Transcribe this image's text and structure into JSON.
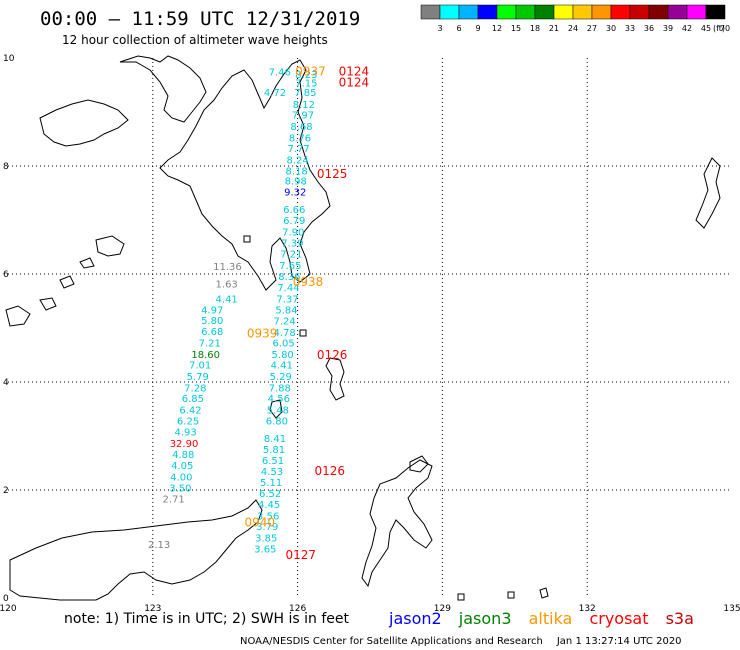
{
  "title": "00:00 – 11:59 UTC 12/31/2019",
  "subtitle": "12 hour collection of altimeter wave heights",
  "legend": {
    "unit": "(ft)",
    "ticks": [
      "3",
      "6",
      "9",
      "12",
      "15",
      "18",
      "21",
      "24",
      "27",
      "30",
      "33",
      "36",
      "39",
      "42",
      "45",
      "70"
    ],
    "colors": [
      "#808080",
      "#00ffff",
      "#00b4ff",
      "#0000ff",
      "#00ff00",
      "#00c800",
      "#008000",
      "#ffff00",
      "#ffc800",
      "#ff9600",
      "#ff0000",
      "#c80000",
      "#800000",
      "#960096",
      "#ff00ff",
      "#000000"
    ]
  },
  "axes": {
    "lon_labels": [
      "120",
      "123",
      "126",
      "129",
      "132",
      "135"
    ],
    "lat_labels": [
      "10",
      "8",
      "6",
      "4",
      "2",
      "0"
    ]
  },
  "annotations": {
    "note": "note:  1) Time is in UTC;  2) SWH is in feet",
    "satellites": [
      {
        "name": "jason2",
        "color": "#0000ff"
      },
      {
        "name": "jason3",
        "color": "#008000"
      },
      {
        "name": "altika",
        "color": "#ff9600"
      },
      {
        "name": "cryosat",
        "color": "#ff0000"
      },
      {
        "name": "s3a",
        "color": "#c80000"
      }
    ],
    "credit": "NOAA/NESDIS Center for Satellite Applications and Research",
    "timestamp": "Jan  1 13:27:14 UTC 2020"
  },
  "time_labels": [
    {
      "text": "0937",
      "color": "#ff9600",
      "lon": 125.95,
      "lat": 9.75
    },
    {
      "text": "0124",
      "color": "#ff0000",
      "lon": 126.85,
      "lat": 9.75
    },
    {
      "text": "0124",
      "color": "#ff0000",
      "lon": 126.85,
      "lat": 9.55
    },
    {
      "text": "0125",
      "color": "#ff0000",
      "lon": 126.4,
      "lat": 7.85
    },
    {
      "text": "0938",
      "color": "#ff9600",
      "lon": 125.9,
      "lat": 5.85
    },
    {
      "text": "0939",
      "color": "#ff9600",
      "lon": 124.95,
      "lat": 4.9
    },
    {
      "text": "0126",
      "color": "#ff0000",
      "lon": 126.4,
      "lat": 4.5
    },
    {
      "text": "0126",
      "color": "#ff0000",
      "lon": 126.35,
      "lat": 2.35
    },
    {
      "text": "0940",
      "color": "#ff9600",
      "lon": 124.9,
      "lat": 1.4
    },
    {
      "text": "0127",
      "color": "#ff0000",
      "lon": 125.75,
      "lat": 0.8
    }
  ],
  "wave_heights": [
    {
      "v": "7.46",
      "color": "#00c8dc",
      "lon": 125.4,
      "lat": 9.75
    },
    {
      "v": "8.23",
      "color": "#00c8dc",
      "lon": 125.95,
      "lat": 9.7
    },
    {
      "v": "7.15",
      "color": "#00c8dc",
      "lon": 125.95,
      "lat": 9.55
    },
    {
      "v": "4.72",
      "color": "#00c8dc",
      "lon": 125.3,
      "lat": 9.37
    },
    {
      "v": "7.85",
      "color": "#00c8dc",
      "lon": 125.93,
      "lat": 9.37
    },
    {
      "v": "8.12",
      "color": "#00c8dc",
      "lon": 125.9,
      "lat": 9.15
    },
    {
      "v": "7.97",
      "color": "#00c8dc",
      "lon": 125.88,
      "lat": 8.95
    },
    {
      "v": "8.68",
      "color": "#00c8dc",
      "lon": 125.85,
      "lat": 8.74
    },
    {
      "v": "8.76",
      "color": "#00c8dc",
      "lon": 125.82,
      "lat": 8.53
    },
    {
      "v": "7.77",
      "color": "#00c8dc",
      "lon": 125.79,
      "lat": 8.33
    },
    {
      "v": "8.24",
      "color": "#00c8dc",
      "lon": 125.77,
      "lat": 8.12
    },
    {
      "v": "8.18",
      "color": "#00c8dc",
      "lon": 125.75,
      "lat": 7.92
    },
    {
      "v": "8.98",
      "color": "#00c8dc",
      "lon": 125.73,
      "lat": 7.73
    },
    {
      "v": "9.32",
      "color": "#0000ff",
      "lon": 125.72,
      "lat": 7.53
    },
    {
      "v": "6.66",
      "color": "#00c8dc",
      "lon": 125.7,
      "lat": 7.2
    },
    {
      "v": "6.79",
      "color": "#00c8dc",
      "lon": 125.7,
      "lat": 7.0
    },
    {
      "v": "7.90",
      "color": "#00c8dc",
      "lon": 125.68,
      "lat": 6.79
    },
    {
      "v": "7.39",
      "color": "#00c8dc",
      "lon": 125.66,
      "lat": 6.58
    },
    {
      "v": "7.21",
      "color": "#00c8dc",
      "lon": 125.64,
      "lat": 6.38
    },
    {
      "v": "7.65",
      "color": "#00c8dc",
      "lon": 125.62,
      "lat": 6.17
    },
    {
      "v": "11.36",
      "color": "#808080",
      "lon": 124.25,
      "lat": 6.15
    },
    {
      "v": "8.36",
      "color": "#00c8dc",
      "lon": 125.6,
      "lat": 5.96
    },
    {
      "v": "7.44",
      "color": "#00c8dc",
      "lon": 125.58,
      "lat": 5.76
    },
    {
      "v": "1.63",
      "color": "#808080",
      "lon": 124.3,
      "lat": 5.82
    },
    {
      "v": "7.37",
      "color": "#00c8dc",
      "lon": 125.56,
      "lat": 5.55
    },
    {
      "v": "4.41",
      "color": "#00c8dc",
      "lon": 124.3,
      "lat": 5.55
    },
    {
      "v": "4.97",
      "color": "#00c8dc",
      "lon": 124.0,
      "lat": 5.34
    },
    {
      "v": "5.84",
      "color": "#00c8dc",
      "lon": 125.54,
      "lat": 5.34
    },
    {
      "v": "5.80",
      "color": "#00c8dc",
      "lon": 124.0,
      "lat": 5.15
    },
    {
      "v": "7.24",
      "color": "#00c8dc",
      "lon": 125.5,
      "lat": 5.14
    },
    {
      "v": "6.68",
      "color": "#00c8dc",
      "lon": 124.0,
      "lat": 4.94
    },
    {
      "v": "4.78",
      "color": "#00c8dc",
      "lon": 125.5,
      "lat": 4.93
    },
    {
      "v": "7.21",
      "color": "#00c8dc",
      "lon": 123.95,
      "lat": 4.73
    },
    {
      "v": "6.05",
      "color": "#00c8dc",
      "lon": 125.48,
      "lat": 4.73
    },
    {
      "v": "18.60",
      "color": "#008000",
      "lon": 123.8,
      "lat": 4.52
    },
    {
      "v": "5.80",
      "color": "#00c8dc",
      "lon": 125.46,
      "lat": 4.52
    },
    {
      "v": "7.01",
      "color": "#00c8dc",
      "lon": 123.75,
      "lat": 4.32
    },
    {
      "v": "4.41",
      "color": "#00c8dc",
      "lon": 125.44,
      "lat": 4.32
    },
    {
      "v": "5.79",
      "color": "#00c8dc",
      "lon": 123.7,
      "lat": 4.11
    },
    {
      "v": "5.29",
      "color": "#00c8dc",
      "lon": 125.42,
      "lat": 4.11
    },
    {
      "v": "7.28",
      "color": "#00c8dc",
      "lon": 123.65,
      "lat": 3.9
    },
    {
      "v": "7.88",
      "color": "#00c8dc",
      "lon": 125.4,
      "lat": 3.9
    },
    {
      "v": "6.85",
      "color": "#00c8dc",
      "lon": 123.6,
      "lat": 3.7
    },
    {
      "v": "4.56",
      "color": "#00c8dc",
      "lon": 125.38,
      "lat": 3.7
    },
    {
      "v": "6.42",
      "color": "#00c8dc",
      "lon": 123.55,
      "lat": 3.49
    },
    {
      "v": "5.48",
      "color": "#00c8dc",
      "lon": 125.36,
      "lat": 3.49
    },
    {
      "v": "6.25",
      "color": "#00c8dc",
      "lon": 123.5,
      "lat": 3.29
    },
    {
      "v": "6.80",
      "color": "#00c8dc",
      "lon": 125.34,
      "lat": 3.29
    },
    {
      "v": "4.93",
      "color": "#00c8dc",
      "lon": 123.45,
      "lat": 3.08
    },
    {
      "v": "8.41",
      "color": "#00c8dc",
      "lon": 125.3,
      "lat": 2.96
    },
    {
      "v": "32.90",
      "color": "#ff0000",
      "lon": 123.35,
      "lat": 2.87
    },
    {
      "v": "5.81",
      "color": "#00c8dc",
      "lon": 125.28,
      "lat": 2.76
    },
    {
      "v": "4.88",
      "color": "#00c8dc",
      "lon": 123.4,
      "lat": 2.67
    },
    {
      "v": "6.51",
      "color": "#00c8dc",
      "lon": 125.26,
      "lat": 2.56
    },
    {
      "v": "4.05",
      "color": "#00c8dc",
      "lon": 123.38,
      "lat": 2.46
    },
    {
      "v": "4.53",
      "color": "#00c8dc",
      "lon": 125.24,
      "lat": 2.35
    },
    {
      "v": "4.00",
      "color": "#00c8dc",
      "lon": 123.36,
      "lat": 2.25
    },
    {
      "v": "5.11",
      "color": "#00c8dc",
      "lon": 125.22,
      "lat": 2.15
    },
    {
      "v": "3.50",
      "color": "#00c8dc",
      "lon": 123.34,
      "lat": 2.05
    },
    {
      "v": "6.52",
      "color": "#00c8dc",
      "lon": 125.2,
      "lat": 1.94
    },
    {
      "v": "2.71",
      "color": "#808080",
      "lon": 123.2,
      "lat": 1.84
    },
    {
      "v": "4.45",
      "color": "#00c8dc",
      "lon": 125.18,
      "lat": 1.74
    },
    {
      "v": "3.56",
      "color": "#00c8dc",
      "lon": 125.16,
      "lat": 1.53
    },
    {
      "v": "3.79",
      "color": "#00c8dc",
      "lon": 125.14,
      "lat": 1.33
    },
    {
      "v": "3.85",
      "color": "#00c8dc",
      "lon": 125.12,
      "lat": 1.12
    },
    {
      "v": "2.13",
      "color": "#808080",
      "lon": 122.9,
      "lat": 1.0
    },
    {
      "v": "3.65",
      "color": "#00c8dc",
      "lon": 125.1,
      "lat": 0.92
    }
  ]
}
